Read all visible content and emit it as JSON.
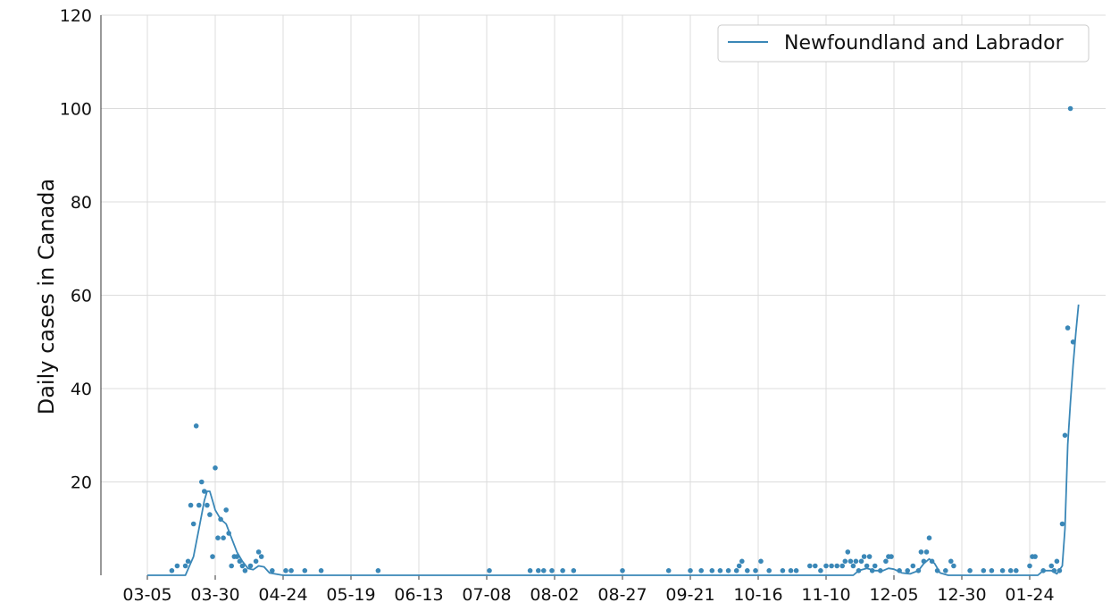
{
  "chart_data": {
    "type": "line",
    "title": "",
    "xlabel": "",
    "ylabel": "Daily cases in Canada",
    "ylim": [
      0,
      120
    ],
    "yticks": [
      20,
      40,
      60,
      80,
      100,
      120
    ],
    "x_tick_labels": [
      "03-05",
      "03-30",
      "04-24",
      "05-19",
      "06-13",
      "07-08",
      "08-02",
      "08-27",
      "09-21",
      "10-16",
      "11-10",
      "12-05",
      "12-30",
      "01-24"
    ],
    "x_date_range": [
      "2020-03-05",
      "2021-02-11"
    ],
    "grid": true,
    "legend_position": "top-right",
    "colors": {
      "series": "#3a87b7",
      "grid": "#dcdcdc",
      "axis": "#333333"
    },
    "series": [
      {
        "name": "Newfoundland and Labrador",
        "kind": "rolling-average-line",
        "points": [
          [
            "2020-03-05",
            0
          ],
          [
            "2020-03-19",
            0
          ],
          [
            "2020-03-22",
            4
          ],
          [
            "2020-03-24",
            10
          ],
          [
            "2020-03-26",
            16
          ],
          [
            "2020-03-27",
            18
          ],
          [
            "2020-03-28",
            18
          ],
          [
            "2020-03-29",
            16
          ],
          [
            "2020-03-30",
            14
          ],
          [
            "2020-04-01",
            12
          ],
          [
            "2020-04-03",
            11
          ],
          [
            "2020-04-05",
            8
          ],
          [
            "2020-04-07",
            5
          ],
          [
            "2020-04-09",
            3
          ],
          [
            "2020-04-11",
            1.5
          ],
          [
            "2020-04-13",
            1.2
          ],
          [
            "2020-04-15",
            2
          ],
          [
            "2020-04-17",
            1.8
          ],
          [
            "2020-04-19",
            0.5
          ],
          [
            "2020-04-24",
            0
          ],
          [
            "2020-10-16",
            0
          ],
          [
            "2020-11-20",
            0
          ],
          [
            "2020-11-22",
            1
          ],
          [
            "2020-11-25",
            1.5
          ],
          [
            "2020-11-28",
            1
          ],
          [
            "2020-12-01",
            1
          ],
          [
            "2020-12-03",
            1.5
          ],
          [
            "2020-12-05",
            1.3
          ],
          [
            "2020-12-08",
            0.5
          ],
          [
            "2020-12-11",
            0.3
          ],
          [
            "2020-12-14",
            1
          ],
          [
            "2020-12-16",
            2.5
          ],
          [
            "2020-12-18",
            3.5
          ],
          [
            "2020-12-20",
            2.5
          ],
          [
            "2020-12-22",
            0.5
          ],
          [
            "2020-12-25",
            0
          ],
          [
            "2021-01-27",
            0
          ],
          [
            "2021-01-29",
            1
          ],
          [
            "2021-02-01",
            1
          ],
          [
            "2021-02-03",
            0.3
          ],
          [
            "2021-02-05",
            2
          ],
          [
            "2021-02-06",
            10
          ],
          [
            "2021-02-07",
            28
          ],
          [
            "2021-02-08",
            37
          ],
          [
            "2021-02-09",
            45
          ],
          [
            "2021-02-10",
            52
          ],
          [
            "2021-02-11",
            58
          ]
        ]
      },
      {
        "name": "",
        "kind": "daily-points",
        "points": [
          [
            "2020-03-14",
            1
          ],
          [
            "2020-03-16",
            2
          ],
          [
            "2020-03-19",
            2
          ],
          [
            "2020-03-20",
            3
          ],
          [
            "2020-03-21",
            15
          ],
          [
            "2020-03-22",
            11
          ],
          [
            "2020-03-23",
            32
          ],
          [
            "2020-03-24",
            15
          ],
          [
            "2020-03-25",
            20
          ],
          [
            "2020-03-26",
            18
          ],
          [
            "2020-03-27",
            15
          ],
          [
            "2020-03-28",
            13
          ],
          [
            "2020-03-29",
            4
          ],
          [
            "2020-03-30",
            23
          ],
          [
            "2020-03-31",
            8
          ],
          [
            "2020-04-01",
            12
          ],
          [
            "2020-04-02",
            8
          ],
          [
            "2020-04-03",
            14
          ],
          [
            "2020-04-04",
            9
          ],
          [
            "2020-04-05",
            2
          ],
          [
            "2020-04-06",
            4
          ],
          [
            "2020-04-07",
            4
          ],
          [
            "2020-04-08",
            3
          ],
          [
            "2020-04-09",
            2
          ],
          [
            "2020-04-10",
            1
          ],
          [
            "2020-04-12",
            2
          ],
          [
            "2020-04-14",
            3
          ],
          [
            "2020-04-15",
            5
          ],
          [
            "2020-04-16",
            4
          ],
          [
            "2020-04-20",
            1
          ],
          [
            "2020-04-25",
            1
          ],
          [
            "2020-04-27",
            1
          ],
          [
            "2020-05-02",
            1
          ],
          [
            "2020-05-08",
            1
          ],
          [
            "2020-05-29",
            1
          ],
          [
            "2020-07-09",
            1
          ],
          [
            "2020-07-24",
            1
          ],
          [
            "2020-07-27",
            1
          ],
          [
            "2020-07-29",
            1
          ],
          [
            "2020-08-01",
            1
          ],
          [
            "2020-08-05",
            1
          ],
          [
            "2020-08-09",
            1
          ],
          [
            "2020-08-27",
            1
          ],
          [
            "2020-09-13",
            1
          ],
          [
            "2020-09-21",
            1
          ],
          [
            "2020-09-25",
            1
          ],
          [
            "2020-09-29",
            1
          ],
          [
            "2020-10-02",
            1
          ],
          [
            "2020-10-05",
            1
          ],
          [
            "2020-10-08",
            1
          ],
          [
            "2020-10-09",
            2
          ],
          [
            "2020-10-10",
            3
          ],
          [
            "2020-10-12",
            1
          ],
          [
            "2020-10-15",
            1
          ],
          [
            "2020-10-17",
            3
          ],
          [
            "2020-10-20",
            1
          ],
          [
            "2020-10-25",
            1
          ],
          [
            "2020-10-28",
            1
          ],
          [
            "2020-10-30",
            1
          ],
          [
            "2020-11-04",
            2
          ],
          [
            "2020-11-06",
            2
          ],
          [
            "2020-11-08",
            1
          ],
          [
            "2020-11-10",
            2
          ],
          [
            "2020-11-12",
            2
          ],
          [
            "2020-11-14",
            2
          ],
          [
            "2020-11-16",
            2
          ],
          [
            "2020-11-17",
            3
          ],
          [
            "2020-11-18",
            5
          ],
          [
            "2020-11-19",
            3
          ],
          [
            "2020-11-20",
            2
          ],
          [
            "2020-11-21",
            3
          ],
          [
            "2020-11-22",
            1
          ],
          [
            "2020-11-23",
            3
          ],
          [
            "2020-11-24",
            4
          ],
          [
            "2020-11-25",
            2
          ],
          [
            "2020-11-26",
            4
          ],
          [
            "2020-11-27",
            1
          ],
          [
            "2020-11-28",
            2
          ],
          [
            "2020-11-30",
            1
          ],
          [
            "2020-12-02",
            3
          ],
          [
            "2020-12-03",
            4
          ],
          [
            "2020-12-04",
            4
          ],
          [
            "2020-12-07",
            1
          ],
          [
            "2020-12-10",
            1
          ],
          [
            "2020-12-12",
            2
          ],
          [
            "2020-12-14",
            1
          ],
          [
            "2020-12-15",
            5
          ],
          [
            "2020-12-16",
            3
          ],
          [
            "2020-12-17",
            5
          ],
          [
            "2020-12-18",
            8
          ],
          [
            "2020-12-19",
            3
          ],
          [
            "2020-12-21",
            1
          ],
          [
            "2020-12-24",
            1
          ],
          [
            "2020-12-26",
            3
          ],
          [
            "2020-12-27",
            2
          ],
          [
            "2021-01-02",
            1
          ],
          [
            "2021-01-07",
            1
          ],
          [
            "2021-01-10",
            1
          ],
          [
            "2021-01-14",
            1
          ],
          [
            "2021-01-17",
            1
          ],
          [
            "2021-01-19",
            1
          ],
          [
            "2021-01-24",
            2
          ],
          [
            "2021-01-25",
            4
          ],
          [
            "2021-01-26",
            4
          ],
          [
            "2021-01-29",
            1
          ],
          [
            "2021-02-01",
            2
          ],
          [
            "2021-02-02",
            1
          ],
          [
            "2021-02-03",
            3
          ],
          [
            "2021-02-04",
            1
          ],
          [
            "2021-02-05",
            11
          ],
          [
            "2021-02-06",
            30
          ],
          [
            "2021-02-07",
            53
          ],
          [
            "2021-02-08",
            100
          ],
          [
            "2021-02-09",
            50
          ]
        ]
      }
    ]
  }
}
